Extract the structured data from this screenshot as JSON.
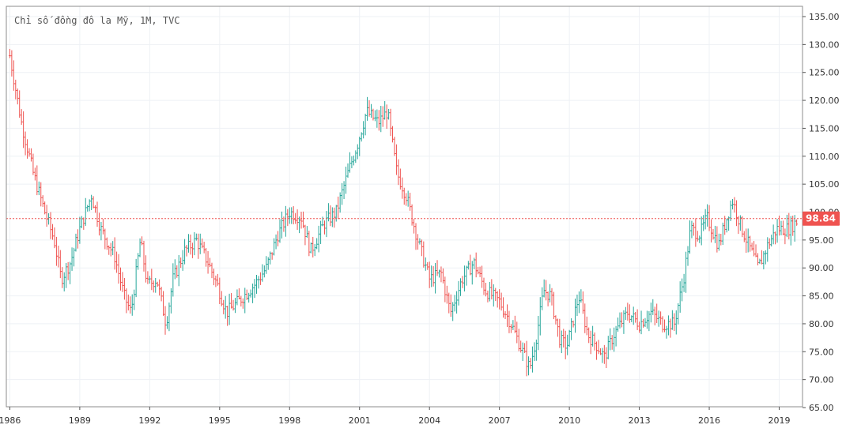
{
  "chart_data": {
    "type": "ohlc",
    "title": "Chỉ số đồng đô la Mỹ, 1M, TVC",
    "symbol": "TVC",
    "interval": "1M",
    "x_range": [
      1985.85,
      2020.0
    ],
    "ylim": [
      65,
      135
    ],
    "y_ticks": [
      65,
      70,
      75,
      80,
      85,
      90,
      95,
      100,
      105,
      110,
      115,
      120,
      125,
      130,
      135
    ],
    "y_tick_labels": [
      "65.00",
      "70.00",
      "75.00",
      "80.00",
      "85.00",
      "90.00",
      "95.00",
      "100.00",
      "105.00",
      "110.00",
      "115.00",
      "120.00",
      "125.00",
      "130.00",
      "135.00"
    ],
    "x_ticks": [
      1986,
      1989,
      1992,
      1995,
      1998,
      2001,
      2004,
      2007,
      2010,
      2013,
      2016,
      2019
    ],
    "x_tick_labels": [
      "1986",
      "1989",
      "1992",
      "1995",
      "1998",
      "2001",
      "2004",
      "2007",
      "2010",
      "2013",
      "2016",
      "2019"
    ],
    "last_price": 98.84,
    "last_price_label": "98.84",
    "colors": {
      "up": "#26a69a",
      "down": "#ef5350",
      "grid": "#eef1f5",
      "axis": "#555555",
      "price_line": "#ef5350",
      "price_tag": "#ef5350",
      "background": "#ffffff"
    },
    "anchors": [
      [
        1986.0,
        128.0
      ],
      [
        1986.5,
        116.0
      ],
      [
        1987.0,
        107.0
      ],
      [
        1987.5,
        100.0
      ],
      [
        1987.9,
        95.0
      ],
      [
        1988.2,
        88.0
      ],
      [
        1988.6,
        91.0
      ],
      [
        1989.0,
        97.0
      ],
      [
        1989.5,
        103.0
      ],
      [
        1989.9,
        97.0
      ],
      [
        1990.5,
        92.0
      ],
      [
        1990.9,
        85.0
      ],
      [
        1991.2,
        82.0
      ],
      [
        1991.6,
        95.0
      ],
      [
        1991.9,
        87.0
      ],
      [
        1992.3,
        88.0
      ],
      [
        1992.7,
        80.0
      ],
      [
        1993.0,
        88.0
      ],
      [
        1993.5,
        93.0
      ],
      [
        1994.0,
        95.0
      ],
      [
        1994.5,
        91.0
      ],
      [
        1994.9,
        87.0
      ],
      [
        1995.3,
        82.0
      ],
      [
        1995.8,
        84.0
      ],
      [
        1996.5,
        87.0
      ],
      [
        1997.0,
        90.0
      ],
      [
        1997.5,
        96.0
      ],
      [
        1998.0,
        100.0
      ],
      [
        1998.5,
        99.0
      ],
      [
        1998.9,
        93.0
      ],
      [
        1999.5,
        98.0
      ],
      [
        2000.0,
        100.0
      ],
      [
        2000.5,
        107.0
      ],
      [
        2000.9,
        112.0
      ],
      [
        2001.3,
        118.0
      ],
      [
        2001.8,
        116.0
      ],
      [
        2002.2,
        118.0
      ],
      [
        2002.6,
        107.0
      ],
      [
        2003.0,
        103.0
      ],
      [
        2003.5,
        95.0
      ],
      [
        2004.0,
        88.0
      ],
      [
        2004.5,
        89.0
      ],
      [
        2004.9,
        82.0
      ],
      [
        2005.4,
        88.0
      ],
      [
        2005.9,
        91.0
      ],
      [
        2006.4,
        86.0
      ],
      [
        2007.0,
        84.0
      ],
      [
        2007.5,
        80.0
      ],
      [
        2007.9,
        76.0
      ],
      [
        2008.3,
        72.0
      ],
      [
        2008.6,
        78.0
      ],
      [
        2008.9,
        86.0
      ],
      [
        2009.2,
        85.0
      ],
      [
        2009.6,
        77.0
      ],
      [
        2009.9,
        76.0
      ],
      [
        2010.4,
        85.0
      ],
      [
        2010.8,
        78.0
      ],
      [
        2011.2,
        76.0
      ],
      [
        2011.5,
        74.0
      ],
      [
        2011.9,
        78.0
      ],
      [
        2012.5,
        82.0
      ],
      [
        2013.0,
        80.0
      ],
      [
        2013.5,
        82.0
      ],
      [
        2014.0,
        80.0
      ],
      [
        2014.5,
        80.0
      ],
      [
        2014.9,
        88.0
      ],
      [
        2015.2,
        97.0
      ],
      [
        2015.6,
        96.0
      ],
      [
        2015.9,
        99.0
      ],
      [
        2016.4,
        94.0
      ],
      [
        2016.9,
        101.0
      ],
      [
        2017.0,
        102.0
      ],
      [
        2017.4,
        97.0
      ],
      [
        2017.8,
        93.0
      ],
      [
        2018.1,
        90.0
      ],
      [
        2018.5,
        94.0
      ],
      [
        2018.9,
        97.0
      ],
      [
        2019.4,
        97.0
      ],
      [
        2019.8,
        98.5
      ]
    ]
  }
}
